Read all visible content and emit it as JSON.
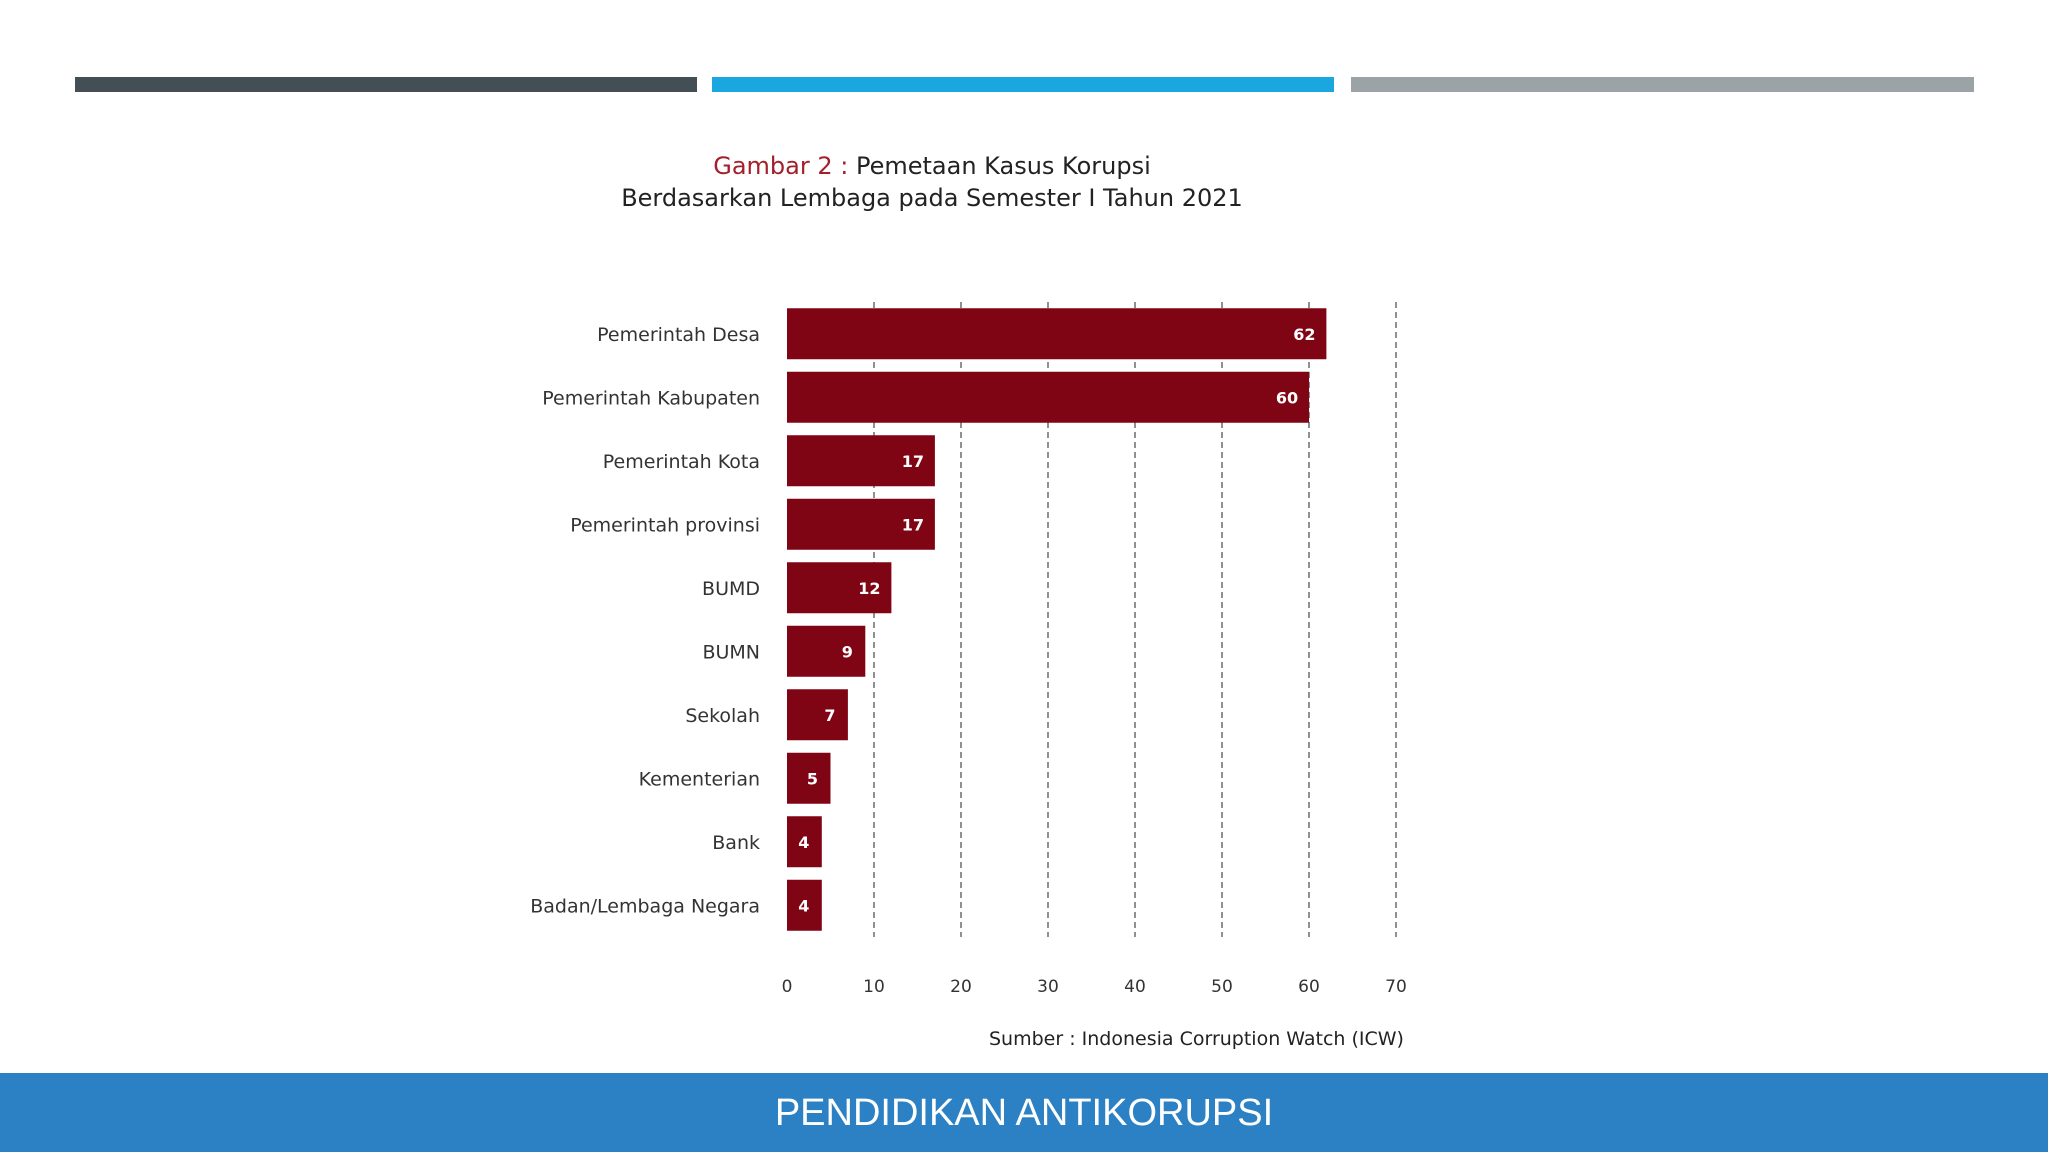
{
  "colors": {
    "bar_dark": "#444e55",
    "bar_blue": "#1aa7e0",
    "bar_gray": "#9ca3a7",
    "chart_bar": "#800514",
    "footer": "#2b81c3",
    "grid": "#555555"
  },
  "title": {
    "figure_label": "Gambar 2 :",
    "line1": " Pemetaan Kasus Korupsi",
    "line2": "Berdasarkan Lembaga pada Semester I Tahun 2021"
  },
  "source": "Sumber : Indonesia Corruption Watch (ICW)",
  "footer": {
    "text": "PENDIDIKAN ANTIKORUPSI"
  },
  "chart_data": {
    "type": "bar",
    "orientation": "horizontal",
    "title": "Gambar 2 : Pemetaan Kasus Korupsi Berdasarkan Lembaga pada Semester I Tahun 2021",
    "categories": [
      "Pemerintah Desa",
      "Pemerintah Kabupaten",
      "Pemerintah Kota",
      "Pemerintah provinsi",
      "BUMD",
      "BUMN",
      "Sekolah",
      "Kementerian",
      "Bank",
      "Badan/Lembaga Negara"
    ],
    "values": [
      62,
      60,
      17,
      17,
      12,
      9,
      7,
      5,
      4,
      4
    ],
    "xlim": [
      0,
      70
    ],
    "xticks": [
      0,
      10,
      20,
      30,
      40,
      50,
      60,
      70
    ],
    "grid": "vertical dashed",
    "xlabel": "",
    "ylabel": ""
  }
}
